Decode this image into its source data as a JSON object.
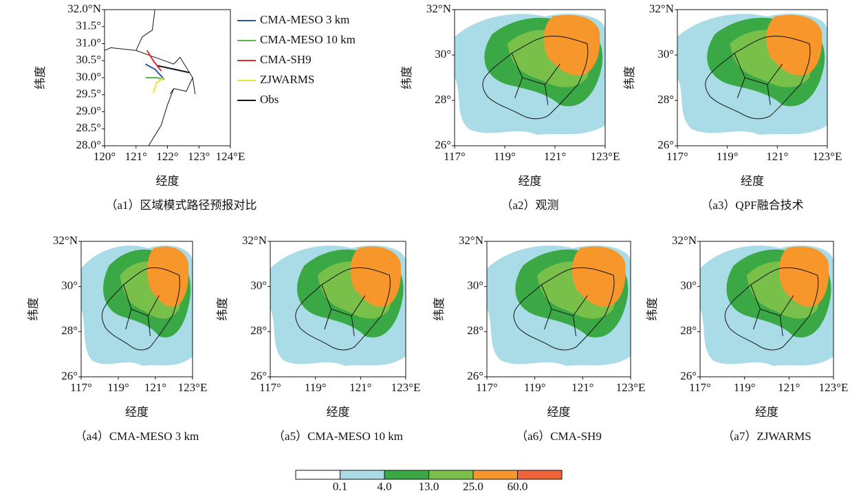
{
  "chart_data": {
    "type": "map",
    "panels": [
      {
        "caption": "（a1）区域模式路径预报对比",
        "xlabel": "经度",
        "ylabel": "纬度",
        "xlim": [
          120,
          124
        ],
        "ylim": [
          28,
          32
        ],
        "xticks": [
          {
            "value": 120,
            "label": "120°"
          },
          {
            "value": 121,
            "label": "121°"
          },
          {
            "value": 122,
            "label": "122°"
          },
          {
            "value": 123,
            "label": "123°"
          },
          {
            "value": 124,
            "label": "124°E"
          }
        ],
        "yticks": [
          {
            "value": 28,
            "label": "28.0°"
          },
          {
            "value": 28.5,
            "label": "28.5°"
          },
          {
            "value": 29,
            "label": "29.0°"
          },
          {
            "value": 29.5,
            "label": "29.5°"
          },
          {
            "value": 30,
            "label": "30.0°"
          },
          {
            "value": 30.5,
            "label": "30.5°"
          },
          {
            "value": 31,
            "label": "31.0°"
          },
          {
            "value": 31.5,
            "label": "31.5°"
          },
          {
            "value": 32,
            "label": "32.0°N"
          }
        ],
        "series": [
          {
            "name": "CMA-MESO 3 km",
            "color": "#2c4fa8",
            "lon": [
              121.3,
              121.6,
              121.9
            ],
            "lat": [
              30.4,
              30.25,
              29.95
            ]
          },
          {
            "name": "CMA-MESO 10 km",
            "color": "#5cb848",
            "lon": [
              121.3,
              121.65,
              121.9
            ],
            "lat": [
              30.0,
              30.0,
              29.95
            ]
          },
          {
            "name": "CMA-SH9",
            "color": "#e8282a",
            "lon": [
              121.35,
              121.55,
              121.8
            ],
            "lat": [
              30.8,
              30.5,
              30.2
            ]
          },
          {
            "name": "ZJWARMS",
            "color": "#e6e637",
            "lon": [
              121.55,
              121.65,
              121.9
            ],
            "lat": [
              29.55,
              29.85,
              30.0
            ]
          },
          {
            "name": "Obs",
            "color": "#111111",
            "lon": [
              122.7,
              122.2,
              121.7
            ],
            "lat": [
              30.15,
              30.25,
              30.35
            ]
          }
        ]
      },
      {
        "caption": "（a2）观测",
        "xlabel": "经度",
        "ylabel": "纬度",
        "xlim": [
          117,
          123
        ],
        "ylim": [
          26,
          32
        ],
        "xticks": [
          {
            "value": 117,
            "label": "117°"
          },
          {
            "value": 119,
            "label": "119°"
          },
          {
            "value": 121,
            "label": "121°"
          },
          {
            "value": 123,
            "label": "123°E"
          }
        ],
        "yticks": [
          {
            "value": 26,
            "label": "26°"
          },
          {
            "value": 28,
            "label": "28°"
          },
          {
            "value": 30,
            "label": "30°"
          },
          {
            "value": 32,
            "label": "32°N"
          }
        ]
      },
      {
        "caption": "（a3）QPF融合技术",
        "xlabel": "经度",
        "ylabel": "纬度",
        "xlim": [
          117,
          123
        ],
        "ylim": [
          26,
          32
        ],
        "xticks": [
          {
            "value": 117,
            "label": "117°"
          },
          {
            "value": 119,
            "label": "119°"
          },
          {
            "value": 121,
            "label": "121°"
          },
          {
            "value": 123,
            "label": "123°E"
          }
        ],
        "yticks": [
          {
            "value": 26,
            "label": "26°"
          },
          {
            "value": 28,
            "label": "28°"
          },
          {
            "value": 30,
            "label": "30°"
          },
          {
            "value": 32,
            "label": "32°N"
          }
        ]
      },
      {
        "caption": "（a4）CMA-MESO 3 km",
        "xlabel": "经度",
        "ylabel": "纬度",
        "xlim": [
          117,
          123
        ],
        "ylim": [
          26,
          32
        ],
        "xticks": [
          {
            "value": 117,
            "label": "117°"
          },
          {
            "value": 119,
            "label": "119°"
          },
          {
            "value": 121,
            "label": "121°"
          },
          {
            "value": 123,
            "label": "123°E"
          }
        ],
        "yticks": [
          {
            "value": 26,
            "label": "26°"
          },
          {
            "value": 28,
            "label": "28°"
          },
          {
            "value": 30,
            "label": "30°"
          },
          {
            "value": 32,
            "label": "32°N"
          }
        ]
      },
      {
        "caption": "（a5）CMA-MESO 10 km",
        "xlabel": "经度",
        "ylabel": "纬度",
        "xlim": [
          117,
          123
        ],
        "ylim": [
          26,
          32
        ],
        "xticks": [
          {
            "value": 117,
            "label": "117°"
          },
          {
            "value": 119,
            "label": "119°"
          },
          {
            "value": 121,
            "label": "121°"
          },
          {
            "value": 123,
            "label": "123°E"
          }
        ],
        "yticks": [
          {
            "value": 26,
            "label": "26°"
          },
          {
            "value": 28,
            "label": "28°"
          },
          {
            "value": 30,
            "label": "30°"
          },
          {
            "value": 32,
            "label": "32°N"
          }
        ]
      },
      {
        "caption": "（a6）CMA-SH9",
        "xlabel": "经度",
        "ylabel": "纬度",
        "xlim": [
          117,
          123
        ],
        "ylim": [
          26,
          32
        ],
        "xticks": [
          {
            "value": 117,
            "label": "117°"
          },
          {
            "value": 119,
            "label": "119°"
          },
          {
            "value": 121,
            "label": "121°"
          },
          {
            "value": 123,
            "label": "123°E"
          }
        ],
        "yticks": [
          {
            "value": 26,
            "label": "26°"
          },
          {
            "value": 28,
            "label": "28°"
          },
          {
            "value": 30,
            "label": "30°"
          },
          {
            "value": 32,
            "label": "32°N"
          }
        ]
      },
      {
        "caption": "（a7）ZJWARMS",
        "xlabel": "经度",
        "ylabel": "纬度",
        "xlim": [
          117,
          123
        ],
        "ylim": [
          26,
          32
        ],
        "xticks": [
          {
            "value": 117,
            "label": "117°"
          },
          {
            "value": 119,
            "label": "119°"
          },
          {
            "value": 121,
            "label": "121°"
          },
          {
            "value": 123,
            "label": "123°E"
          }
        ],
        "yticks": [
          {
            "value": 26,
            "label": "26°"
          },
          {
            "value": 28,
            "label": "28°"
          },
          {
            "value": 30,
            "label": "30°"
          },
          {
            "value": 32,
            "label": "32°N"
          }
        ]
      }
    ],
    "colorbar": {
      "colors": [
        "#ffffff",
        "#a9dce6",
        "#3aa845",
        "#78c04a",
        "#f7962b",
        "#f0643a"
      ],
      "ticks": [
        0.1,
        {
          "value": 4,
          "label": "4.0"
        },
        {
          "value": 13,
          "label": "13.0"
        },
        {
          "value": 25,
          "label": "25.0"
        },
        {
          "value": 60,
          "label": "60.0"
        }
      ]
    }
  }
}
